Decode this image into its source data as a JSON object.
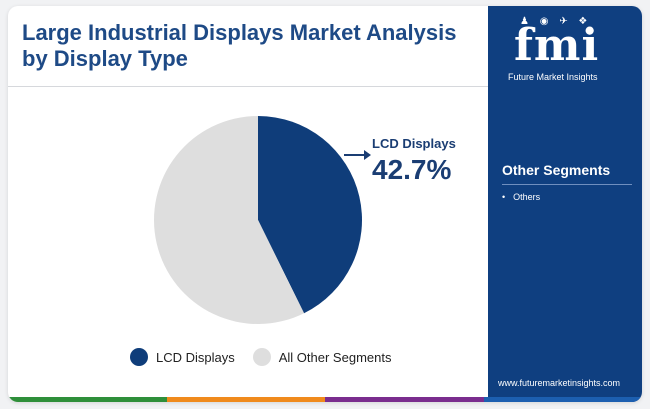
{
  "title": "Large Industrial Displays Market Analysis by Display Type",
  "callout": {
    "label": "LCD Displays",
    "value": "42.7%"
  },
  "legend": [
    {
      "label": "LCD Displays",
      "color": "#0f3d7a"
    },
    {
      "label": "All Other Segments",
      "color": "#dedede"
    }
  ],
  "chart_data": {
    "type": "pie",
    "title": "Large Industrial Displays Market Analysis by Display Type",
    "slices": [
      {
        "label": "LCD Displays",
        "value": 42.7,
        "color": "#0f3d7a"
      },
      {
        "label": "All Other Segments",
        "value": 57.3,
        "color": "#dedede"
      }
    ],
    "legend_position": "bottom"
  },
  "sidebar": {
    "logo": "fmi",
    "logo_subtitle": "Future Market Insights",
    "logo_icons": "♟ ◉ ✈ ❖",
    "heading": "Other Segments",
    "items": [
      "Others"
    ],
    "url": "www.futuremarketinsights.com",
    "background": "#0f3f80"
  },
  "bottom_bar_colors": [
    "#2f8f3a",
    "#f08a1c",
    "#7a2d8e",
    "#1c5fb0"
  ]
}
